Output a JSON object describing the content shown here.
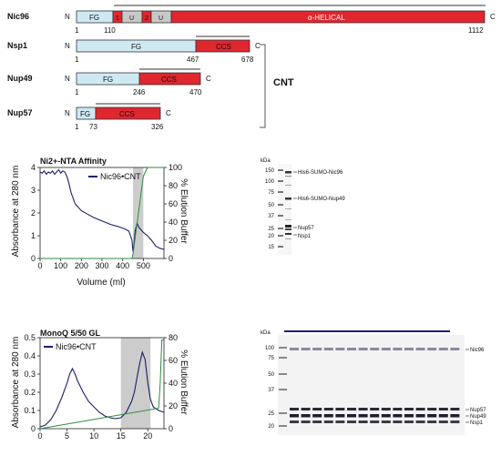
{
  "domains": {
    "proteins": [
      {
        "name": "Nic96",
        "n": "N",
        "c": "C",
        "nums": [
          "1",
          "110",
          "1112"
        ],
        "segs": [
          {
            "label": "FG"
          },
          {
            "label": "1"
          },
          {
            "label": "U"
          },
          {
            "label": "2"
          },
          {
            "label": "U"
          },
          {
            "label": "α-HELICAL"
          }
        ]
      },
      {
        "name": "Nsp1",
        "n": "N",
        "c": "C",
        "nums": [
          "1",
          "467",
          "678"
        ],
        "segs": [
          {
            "label": "FG"
          },
          {
            "label": "CCS"
          }
        ]
      },
      {
        "name": "Nup49",
        "n": "N",
        "c": "C",
        "nums": [
          "1",
          "246",
          "470"
        ],
        "segs": [
          {
            "label": "FG"
          },
          {
            "label": "CCS"
          }
        ]
      },
      {
        "name": "Nup57",
        "n": "N",
        "c": "C",
        "nums": [
          "1",
          "73",
          "326"
        ],
        "segs": [
          {
            "label": "FG"
          },
          {
            "label": "CCS"
          }
        ]
      }
    ],
    "group_label": "CNT",
    "colors": {
      "fg": "#cfe9f4",
      "red": "#e0262e",
      "u": "#c8c8c8"
    }
  },
  "chart_data": [
    {
      "type": "line",
      "title": "Ni2+-NTA Affinity",
      "xlabel": "Volume (ml)",
      "ylabel": "Absorbance at 280 nm",
      "y2label": "% Elution Buffer",
      "xlim": [
        0,
        600
      ],
      "ylim": [
        0,
        4
      ],
      "y2lim": [
        0,
        100
      ],
      "xticks": [
        "0",
        "100",
        "200",
        "300",
        "400",
        "500"
      ],
      "yticks": [
        "0",
        "1",
        "2",
        "3",
        "4"
      ],
      "y2ticks": [
        "0",
        "20",
        "40",
        "60",
        "80",
        "100"
      ],
      "shaded": [
        450,
        500
      ],
      "series": [
        {
          "name": "Nic96•CNT",
          "color": "#1c1f6e",
          "axis": "left",
          "x": [
            0,
            10,
            20,
            30,
            40,
            50,
            60,
            70,
            80,
            90,
            100,
            110,
            120,
            130,
            140,
            150,
            170,
            200,
            230,
            260,
            300,
            340,
            380,
            410,
            430,
            445,
            450,
            455,
            460,
            470,
            480,
            490,
            500,
            520,
            540,
            560,
            580,
            600
          ],
          "y": [
            3.8,
            3.75,
            3.85,
            3.7,
            3.8,
            3.75,
            3.85,
            3.7,
            3.8,
            3.9,
            3.75,
            3.85,
            3.8,
            3.6,
            3.3,
            2.9,
            2.4,
            2.1,
            1.95,
            1.8,
            1.65,
            1.5,
            1.4,
            1.3,
            1.2,
            0.8,
            0.3,
            0.6,
            1.2,
            1.55,
            1.35,
            1.25,
            1.15,
            1.0,
            0.8,
            0.55,
            0.45,
            0.4
          ]
        },
        {
          "name": "",
          "color": "#2e8b3d",
          "axis": "right",
          "x": [
            0,
            440,
            445,
            450,
            500,
            520,
            600
          ],
          "y": [
            0,
            0,
            0,
            5,
            90,
            100,
            100
          ]
        }
      ]
    },
    {
      "type": "line",
      "title": "MonoQ 5/50 GL",
      "xlabel": "",
      "ylabel": "Absorbance at 280 nm",
      "y2label": "% Elution Buffer",
      "xlim": [
        0,
        23
      ],
      "ylim": [
        0,
        0.5
      ],
      "y2lim": [
        0,
        80
      ],
      "xticks": [
        "0",
        "5",
        "10",
        "15",
        "20"
      ],
      "yticks": [
        "0",
        "0.1",
        "0.2",
        "0.3",
        "0.4",
        "0.5"
      ],
      "y2ticks": [
        "0",
        "20",
        "40",
        "60",
        "80"
      ],
      "shaded": [
        15,
        20.5
      ],
      "series": [
        {
          "name": "Nic96•CNT",
          "color": "#1c1f6e",
          "axis": "left",
          "x": [
            0,
            1,
            2,
            3,
            4,
            5,
            5.5,
            6,
            6.5,
            7,
            8,
            9,
            10,
            11,
            12,
            13,
            14,
            15,
            16,
            17,
            17.5,
            18,
            18.5,
            19,
            19.5,
            20,
            20.5,
            21,
            22,
            23
          ],
          "y": [
            0.01,
            0.02,
            0.05,
            0.1,
            0.17,
            0.25,
            0.3,
            0.33,
            0.3,
            0.26,
            0.2,
            0.15,
            0.12,
            0.09,
            0.07,
            0.06,
            0.055,
            0.06,
            0.09,
            0.15,
            0.2,
            0.28,
            0.36,
            0.42,
            0.38,
            0.25,
            0.16,
            0.12,
            0.1,
            0.09
          ]
        },
        {
          "name": "",
          "color": "#2e8b3d",
          "axis": "right",
          "x": [
            0,
            22,
            22.3,
            22.6,
            23
          ],
          "y": [
            0,
            18,
            40,
            78,
            78
          ]
        }
      ]
    }
  ],
  "gel1": {
    "unit": "kDa",
    "markers": [
      "150",
      "100",
      "75",
      "50",
      "37",
      "25",
      "20",
      "15"
    ],
    "labels": [
      "His6-SUMO-Nic96",
      "His6-SUMO-Nup49",
      "Nup57",
      "Nsp1"
    ]
  },
  "gel2": {
    "unit": "kDa",
    "markers": [
      "100",
      "75",
      "50",
      "37",
      "25",
      "20"
    ],
    "labels": [
      "Nic96",
      "Nup57",
      "Nup49",
      "Nsp1"
    ]
  }
}
